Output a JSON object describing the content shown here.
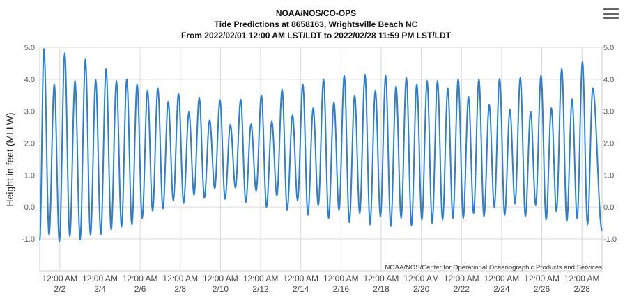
{
  "header": {
    "title": "NOAA/NOS/CO-OPS",
    "subtitle": "Tide Predictions at 8658163, Wrightsville Beach NC",
    "range": "From 2022/02/01 12:00 AM LST/LDT to 2022/02/28 11:59 PM LST/LDT"
  },
  "menu_icon": "hamburger-menu-icon",
  "credit": "NOAA/NOS/Center for Operational Oceanographic Products and Services",
  "chart_data": {
    "type": "line",
    "ylabel": "Height in feet (MLLW)",
    "ylim": [
      -1.0,
      5.0
    ],
    "y_ticks": [
      {
        "value": 5.0,
        "label": "5.0"
      },
      {
        "value": 4.0,
        "label": "4.0"
      },
      {
        "value": 3.0,
        "label": "3.0"
      },
      {
        "value": 2.0,
        "label": "2.0"
      },
      {
        "value": 1.0,
        "label": "1.0"
      },
      {
        "value": 0.0,
        "label": "0.0"
      },
      {
        "value": -1.0,
        "label": "-1.0"
      }
    ],
    "x_start": "2022-02-01T00:00",
    "x_end": "2022-02-28T23:59",
    "x_ticks": [
      {
        "value": "2022-02-02T00:00",
        "time": "12:00 AM",
        "date": "2/2"
      },
      {
        "value": "2022-02-04T00:00",
        "time": "12:00 AM",
        "date": "2/4"
      },
      {
        "value": "2022-02-06T00:00",
        "time": "12:00 AM",
        "date": "2/6"
      },
      {
        "value": "2022-02-08T00:00",
        "time": "12:00 AM",
        "date": "2/8"
      },
      {
        "value": "2022-02-10T00:00",
        "time": "12:00 AM",
        "date": "2/10"
      },
      {
        "value": "2022-02-12T00:00",
        "time": "12:00 AM",
        "date": "2/12"
      },
      {
        "value": "2022-02-14T00:00",
        "time": "12:00 AM",
        "date": "2/14"
      },
      {
        "value": "2022-02-16T00:00",
        "time": "12:00 AM",
        "date": "2/16"
      },
      {
        "value": "2022-02-18T00:00",
        "time": "12:00 AM",
        "date": "2/18"
      },
      {
        "value": "2022-02-20T00:00",
        "time": "12:00 AM",
        "date": "2/20"
      },
      {
        "value": "2022-02-22T00:00",
        "time": "12:00 AM",
        "date": "2/22"
      },
      {
        "value": "2022-02-24T00:00",
        "time": "12:00 AM",
        "date": "2/24"
      },
      {
        "value": "2022-02-26T00:00",
        "time": "12:00 AM",
        "date": "2/26"
      },
      {
        "value": "2022-02-28T00:00",
        "time": "12:00 AM",
        "date": "2/28"
      }
    ],
    "grid": true,
    "series": [
      {
        "color": "#2b7fd0",
        "points": [
          [
            "2022-02-01T00:00",
            -1.05
          ],
          [
            "2022-02-01T05:05",
            4.95
          ],
          [
            "2022-02-01T11:10",
            -0.88
          ],
          [
            "2022-02-01T17:25",
            3.85
          ],
          [
            "2022-02-01T23:30",
            -1.08
          ],
          [
            "2022-02-02T05:50",
            4.82
          ],
          [
            "2022-02-02T11:55",
            -0.92
          ],
          [
            "2022-02-02T18:10",
            3.95
          ],
          [
            "2022-02-03T00:15",
            -1.02
          ],
          [
            "2022-02-03T06:35",
            4.62
          ],
          [
            "2022-02-03T12:40",
            -0.88
          ],
          [
            "2022-02-03T18:55",
            3.98
          ],
          [
            "2022-02-04T01:00",
            -0.85
          ],
          [
            "2022-02-04T07:20",
            4.33
          ],
          [
            "2022-02-04T13:25",
            -0.72
          ],
          [
            "2022-02-04T19:40",
            3.95
          ],
          [
            "2022-02-05T01:45",
            -0.62
          ],
          [
            "2022-02-05T08:05",
            4.0
          ],
          [
            "2022-02-05T14:10",
            -0.55
          ],
          [
            "2022-02-05T20:25",
            3.85
          ],
          [
            "2022-02-06T02:30",
            -0.35
          ],
          [
            "2022-02-06T08:50",
            3.65
          ],
          [
            "2022-02-06T14:55",
            -0.12
          ],
          [
            "2022-02-06T21:10",
            3.72
          ],
          [
            "2022-02-07T03:15",
            -0.05
          ],
          [
            "2022-02-07T09:35",
            3.3
          ],
          [
            "2022-02-07T15:40",
            0.2
          ],
          [
            "2022-02-07T21:55",
            3.55
          ],
          [
            "2022-02-08T04:00",
            0.12
          ],
          [
            "2022-02-08T10:20",
            2.97
          ],
          [
            "2022-02-08T16:25",
            0.38
          ],
          [
            "2022-02-08T22:40",
            3.42
          ],
          [
            "2022-02-09T04:45",
            0.28
          ],
          [
            "2022-02-09T11:05",
            2.72
          ],
          [
            "2022-02-09T17:10",
            0.58
          ],
          [
            "2022-02-09T23:25",
            3.35
          ],
          [
            "2022-02-10T05:30",
            0.25
          ],
          [
            "2022-02-10T11:50",
            2.58
          ],
          [
            "2022-02-10T17:55",
            0.6
          ],
          [
            "2022-02-11T00:10",
            3.37
          ],
          [
            "2022-02-11T06:15",
            0.15
          ],
          [
            "2022-02-11T12:35",
            2.6
          ],
          [
            "2022-02-11T18:40",
            0.5
          ],
          [
            "2022-02-12T00:55",
            3.5
          ],
          [
            "2022-02-12T07:00",
            0.0
          ],
          [
            "2022-02-12T13:20",
            2.68
          ],
          [
            "2022-02-12T19:25",
            0.35
          ],
          [
            "2022-02-13T01:40",
            3.68
          ],
          [
            "2022-02-13T07:45",
            -0.1
          ],
          [
            "2022-02-13T14:05",
            2.88
          ],
          [
            "2022-02-13T20:10",
            0.2
          ],
          [
            "2022-02-14T02:25",
            3.85
          ],
          [
            "2022-02-14T08:30",
            -0.25
          ],
          [
            "2022-02-14T14:50",
            3.1
          ],
          [
            "2022-02-14T20:55",
            0.05
          ],
          [
            "2022-02-15T03:10",
            4.0
          ],
          [
            "2022-02-15T09:15",
            -0.35
          ],
          [
            "2022-02-15T15:35",
            3.28
          ],
          [
            "2022-02-15T21:40",
            -0.1
          ],
          [
            "2022-02-16T03:55",
            4.12
          ],
          [
            "2022-02-16T10:00",
            -0.48
          ],
          [
            "2022-02-16T16:20",
            3.5
          ],
          [
            "2022-02-16T22:25",
            -0.2
          ],
          [
            "2022-02-17T04:40",
            4.15
          ],
          [
            "2022-02-17T10:45",
            -0.55
          ],
          [
            "2022-02-17T17:05",
            3.65
          ],
          [
            "2022-02-17T23:10",
            -0.3
          ],
          [
            "2022-02-18T05:25",
            4.12
          ],
          [
            "2022-02-18T11:30",
            -0.6
          ],
          [
            "2022-02-18T17:50",
            3.78
          ],
          [
            "2022-02-18T23:55",
            -0.35
          ],
          [
            "2022-02-19T06:10",
            4.05
          ],
          [
            "2022-02-19T12:15",
            -0.58
          ],
          [
            "2022-02-19T18:35",
            3.85
          ],
          [
            "2022-02-20T00:40",
            -0.4
          ],
          [
            "2022-02-20T06:55",
            3.95
          ],
          [
            "2022-02-20T13:00",
            -0.5
          ],
          [
            "2022-02-20T19:20",
            3.95
          ],
          [
            "2022-02-21T01:25",
            -0.4
          ],
          [
            "2022-02-21T07:40",
            3.72
          ],
          [
            "2022-02-21T13:45",
            -0.35
          ],
          [
            "2022-02-21T20:05",
            4.0
          ],
          [
            "2022-02-22T02:10",
            -0.35
          ],
          [
            "2022-02-22T08:25",
            3.45
          ],
          [
            "2022-02-22T14:30",
            -0.2
          ],
          [
            "2022-02-22T20:50",
            4.0
          ],
          [
            "2022-02-23T02:55",
            -0.3
          ],
          [
            "2022-02-23T09:10",
            3.2
          ],
          [
            "2022-02-23T15:15",
            0.0
          ],
          [
            "2022-02-23T21:35",
            4.02
          ],
          [
            "2022-02-24T03:40",
            -0.25
          ],
          [
            "2022-02-24T09:55",
            3.05
          ],
          [
            "2022-02-24T16:00",
            0.1
          ],
          [
            "2022-02-24T22:20",
            4.05
          ],
          [
            "2022-02-25T04:25",
            -0.3
          ],
          [
            "2022-02-25T10:40",
            2.98
          ],
          [
            "2022-02-25T16:45",
            0.05
          ],
          [
            "2022-02-25T23:05",
            4.12
          ],
          [
            "2022-02-26T05:10",
            -0.4
          ],
          [
            "2022-02-26T11:25",
            3.1
          ],
          [
            "2022-02-26T17:30",
            -0.15
          ],
          [
            "2022-02-26T23:50",
            4.33
          ],
          [
            "2022-02-27T05:55",
            -0.45
          ],
          [
            "2022-02-27T12:10",
            3.38
          ],
          [
            "2022-02-27T18:15",
            -0.35
          ],
          [
            "2022-02-28T00:35",
            4.55
          ],
          [
            "2022-02-28T06:40",
            -0.55
          ],
          [
            "2022-02-28T12:55",
            3.72
          ],
          [
            "2022-02-28T23:59",
            -0.75
          ]
        ]
      }
    ]
  }
}
